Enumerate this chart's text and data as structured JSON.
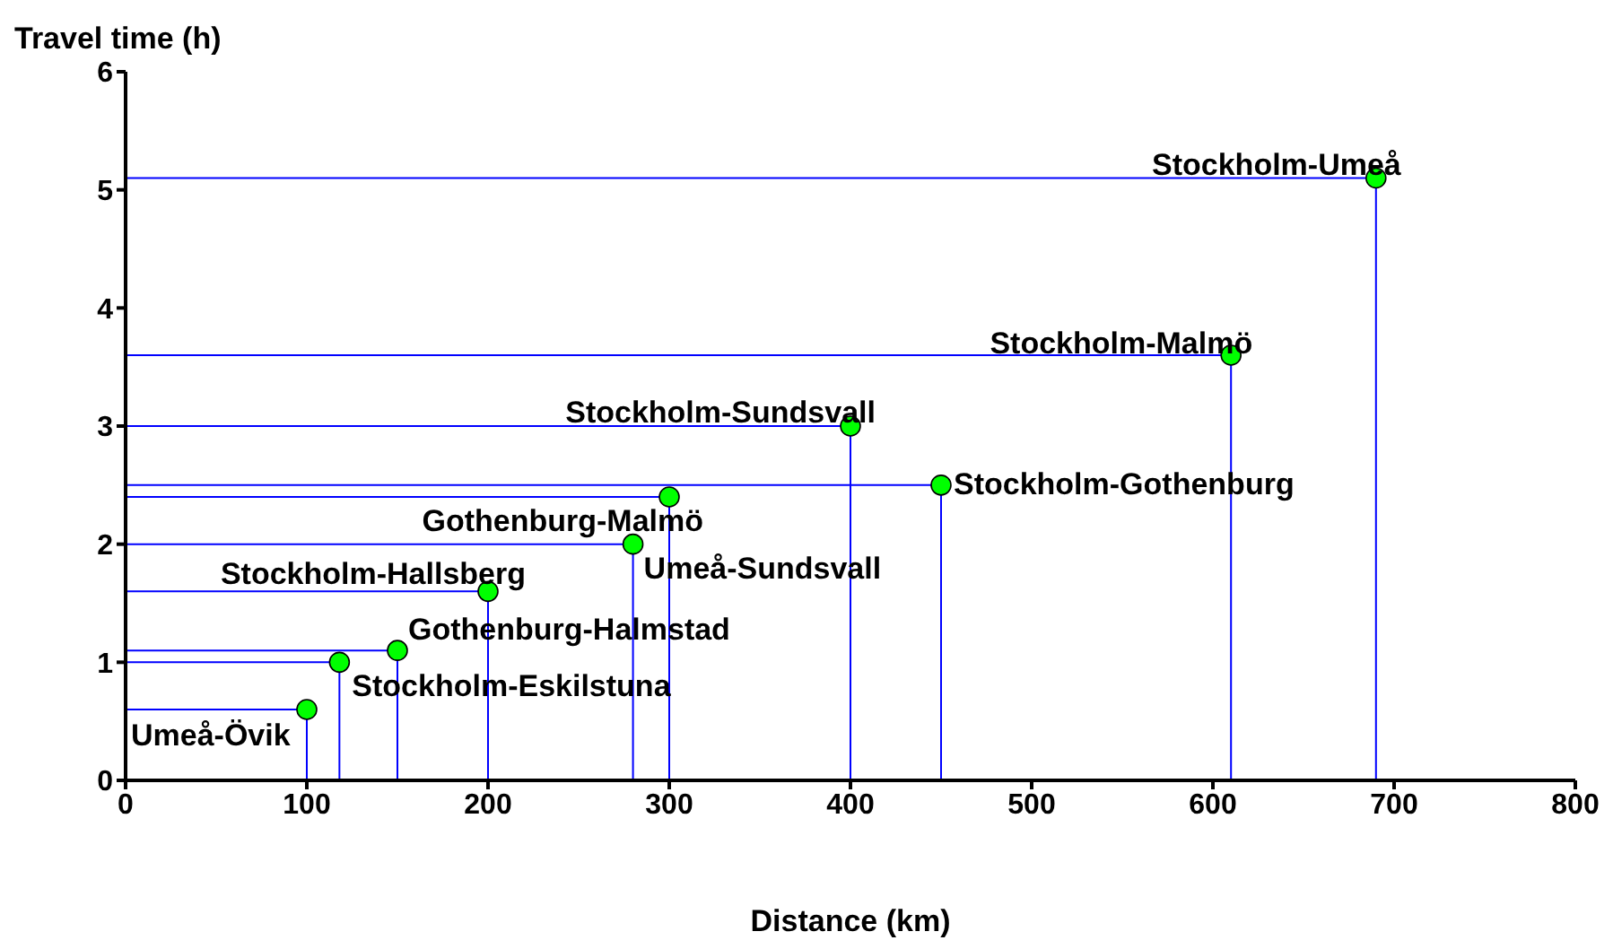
{
  "chart_data": {
    "type": "scatter",
    "xlabel": "Distance (km)",
    "ylabel": "Travel time (h)",
    "x": [
      100,
      118,
      150,
      200,
      280,
      300,
      400,
      450,
      610,
      690
    ],
    "values": [
      0.6,
      1.0,
      1.1,
      1.6,
      2.0,
      2.4,
      3.0,
      2.5,
      3.6,
      5.1
    ],
    "errors": [
      [
        0,
        0.6
      ],
      [
        0,
        1.0
      ],
      [
        0,
        1.1
      ],
      [
        0,
        1.6
      ],
      [
        0,
        2.0
      ],
      [
        0,
        2.4
      ],
      [
        0,
        3.0
      ],
      [
        0,
        2.5
      ],
      [
        0,
        3.6
      ],
      [
        0,
        5.1
      ]
    ],
    "xerrors": [
      [
        0,
        100
      ],
      [
        0,
        118
      ],
      [
        0,
        150
      ],
      [
        0,
        200
      ],
      [
        0,
        280
      ],
      [
        0,
        300
      ],
      [
        0,
        400
      ],
      [
        0,
        450
      ],
      [
        0,
        610
      ],
      [
        0,
        690
      ]
    ],
    "color": "#00ff00",
    "marker": "circle",
    "xlim": [
      0,
      800
    ],
    "xticks": [
      0,
      100,
      200,
      300,
      400,
      500,
      600,
      700,
      800
    ],
    "ylim": [
      0,
      6
    ],
    "yticks": [
      0,
      1,
      2,
      3,
      4,
      5,
      6
    ],
    "grid": false,
    "legend": false,
    "annotations": [
      {
        "text": "Umeå-Övik",
        "x": 100,
        "y": 0.6
      },
      {
        "text": "Stockholm-Eskilstuna",
        "x": 118,
        "y": 1.0
      },
      {
        "text": "Gothenburg-Halmstad",
        "x": 150,
        "y": 1.1
      },
      {
        "text": "Stockholm-Hallsberg",
        "x": 200,
        "y": 1.6
      },
      {
        "text": "Umeå-Sundsvall",
        "x": 280,
        "y": 2.0
      },
      {
        "text": "Gothenburg-Malmö",
        "x": 300,
        "y": 2.4
      },
      {
        "text": "Stockholm-Sundsvall",
        "x": 400,
        "y": 3.0
      },
      {
        "text": "Stockholm-Gothenburg",
        "x": 450,
        "y": 2.5
      },
      {
        "text": "Stockholm-Malmö",
        "x": 610,
        "y": 3.6
      },
      {
        "text": "Stockholm-Umeå",
        "x": 690,
        "y": 5.1
      }
    ]
  }
}
